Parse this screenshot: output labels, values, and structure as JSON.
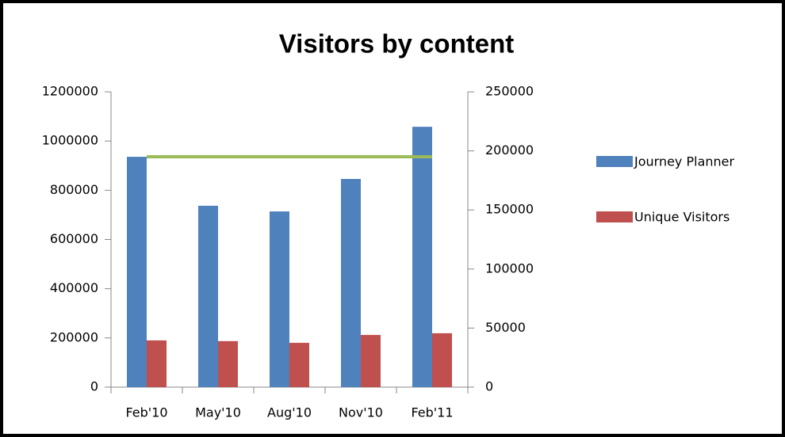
{
  "chart_data": {
    "type": "bar",
    "title": "Visitors  by content",
    "categories": [
      "Feb'10",
      "May'10",
      "Aug'10",
      "Nov'10",
      "Feb'11"
    ],
    "series": [
      {
        "name": "Journey Planner",
        "color": "#4f81bd",
        "values": [
          936000,
          737000,
          714000,
          846000,
          1058000
        ]
      },
      {
        "name": "Unique Visitors",
        "color": "#c0504d",
        "values": [
          190000,
          187000,
          180000,
          212000,
          219000
        ]
      },
      {
        "type": "line",
        "axis": "y2",
        "color": "#9bbb59",
        "values": [
          195000,
          195000,
          195000,
          195000,
          195000
        ]
      }
    ],
    "ylim": [
      0,
      1200000
    ],
    "yticks": [
      0,
      200000,
      400000,
      600000,
      800000,
      1000000,
      1200000
    ],
    "y2lim": [
      0,
      250000
    ],
    "y2ticks": [
      0,
      50000,
      100000,
      150000,
      200000,
      250000
    ],
    "grid": false,
    "legend": "right"
  }
}
